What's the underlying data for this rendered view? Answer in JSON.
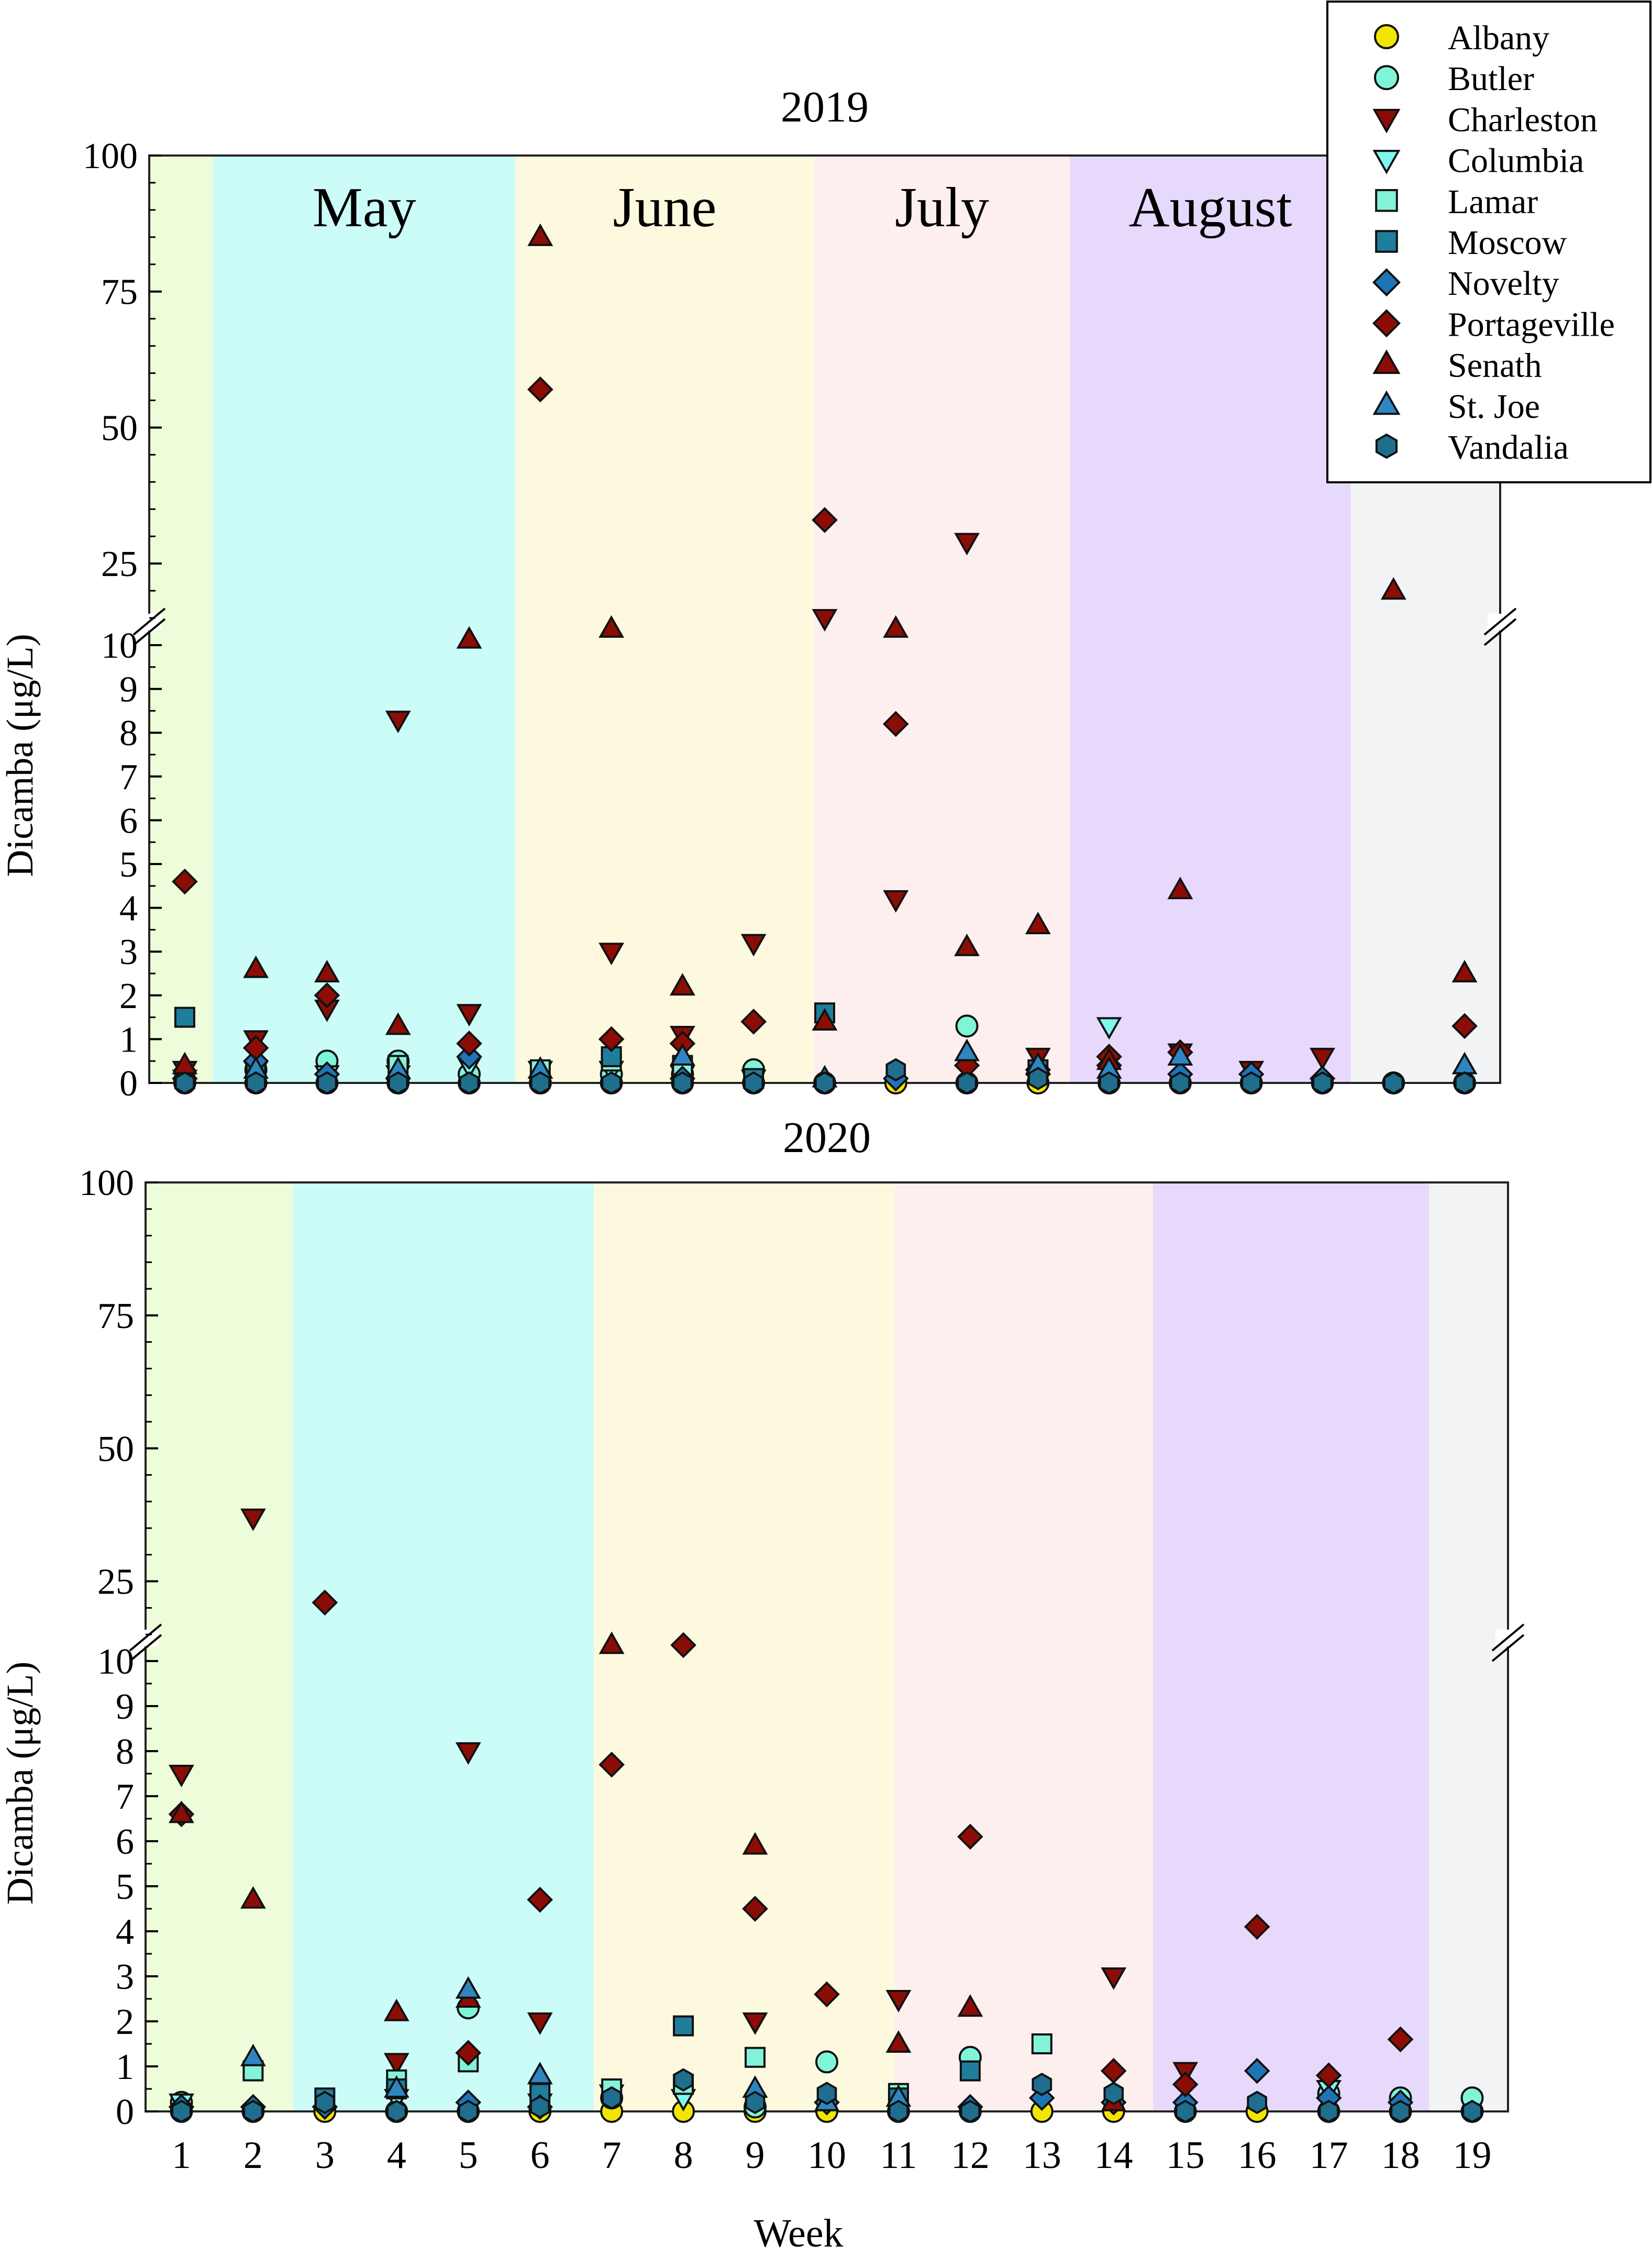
{
  "legend": {
    "entries": [
      {
        "label": "Albany",
        "marker": "circle",
        "fill": "#F2E600"
      },
      {
        "label": "Butler",
        "marker": "circle",
        "fill": "#7FF5D8"
      },
      {
        "label": "Charleston",
        "marker": "triangle-down",
        "fill": "#8B0D06"
      },
      {
        "label": "Columbia",
        "marker": "triangle-down",
        "fill": "#7FF7EE"
      },
      {
        "label": "Lamar",
        "marker": "square",
        "fill": "#82F2D8"
      },
      {
        "label": "Moscow",
        "marker": "square",
        "fill": "#1F7E9C"
      },
      {
        "label": "Novelty",
        "marker": "diamond",
        "fill": "#1F74B5"
      },
      {
        "label": "Portageville",
        "marker": "diamond",
        "fill": "#8B0D06"
      },
      {
        "label": "Senath",
        "marker": "triangle-up",
        "fill": "#8B0D06"
      },
      {
        "label": "St. Joe",
        "marker": "triangle-up",
        "fill": "#2E86C1"
      },
      {
        "label": "Vandalia",
        "marker": "hexagon",
        "fill": "#1F6E8E"
      }
    ]
  },
  "xlabel": "Week",
  "ylabel": "Dicamba (μg/L)",
  "chart_data": [
    {
      "type": "scatter",
      "title": "2019",
      "xlabel": "Week",
      "ylabel": "Dicamba (μg/L)",
      "xlim": [
        0.5,
        19.5
      ],
      "x_ticks": [
        "1",
        "2",
        "3",
        "4",
        "5",
        "6",
        "7",
        "8",
        "9",
        "10",
        "11",
        "12",
        "13",
        "14",
        "15",
        "16",
        "17",
        "18",
        "19"
      ],
      "y_axis": "broken: 0–10 linear, 10–100 compressed",
      "y_ticks_lower": [
        "0",
        "1",
        "2",
        "3",
        "4",
        "5",
        "6",
        "7",
        "8",
        "9",
        "10"
      ],
      "y_ticks_upper": [
        "25",
        "50",
        "75",
        "100"
      ],
      "month_bands": [
        {
          "label": "",
          "from": 0.5,
          "to": 1.4,
          "color": "#EDFDD9"
        },
        {
          "label": "May",
          "from": 1.4,
          "to": 5.65,
          "color": "#CCFCF8"
        },
        {
          "label": "June",
          "from": 5.65,
          "to": 9.85,
          "color": "#FDF9DE"
        },
        {
          "label": "July",
          "from": 9.85,
          "to": 13.45,
          "color": "#FDEFEE"
        },
        {
          "label": "August",
          "from": 13.45,
          "to": 17.4,
          "color": "#E6D9FB"
        },
        {
          "label": "",
          "from": 17.4,
          "to": 19.5,
          "color": "#F2F3F5"
        }
      ],
      "series": [
        {
          "name": "Albany",
          "x": [
            1,
            2,
            3,
            4,
            5,
            6,
            7,
            8,
            9,
            10,
            11,
            12,
            13,
            14,
            15,
            16,
            17,
            18,
            19
          ],
          "y": [
            0,
            0,
            0,
            0,
            0,
            0,
            0,
            0,
            0,
            0,
            0,
            0,
            0,
            0,
            0,
            0,
            0,
            0,
            0
          ]
        },
        {
          "name": "Butler",
          "x": [
            1,
            2,
            3,
            4,
            5,
            7,
            8,
            9,
            12
          ],
          "y": [
            0.05,
            0.3,
            0.5,
            0.5,
            0.2,
            0.2,
            0.2,
            0.3,
            1.3
          ]
        },
        {
          "name": "Charleston",
          "x": [
            1,
            2,
            3,
            4,
            5,
            7,
            8,
            9,
            10,
            11,
            12,
            13,
            15,
            16,
            17
          ],
          "y": [
            0.3,
            1.0,
            1.7,
            8.3,
            1.6,
            3.0,
            1.1,
            3.2,
            15,
            4.2,
            29,
            0.6,
            0.7,
            0.3,
            0.6
          ]
        },
        {
          "name": "Columbia",
          "x": [
            1,
            2,
            3,
            4,
            5,
            6,
            7,
            8,
            9,
            14
          ],
          "y": [
            0.1,
            0.3,
            0.2,
            0.2,
            0.4,
            0.3,
            0.3,
            0.2,
            0.1,
            1.3
          ]
        },
        {
          "name": "Lamar",
          "x": [
            1,
            4,
            6,
            7,
            8
          ],
          "y": [
            0.1,
            0.4,
            0.3,
            0.5,
            0.4
          ]
        },
        {
          "name": "Moscow",
          "x": [
            1,
            2,
            7,
            9,
            10,
            13
          ],
          "y": [
            1.5,
            0.2,
            0.6,
            0.1,
            1.6,
            0.3
          ]
        },
        {
          "name": "Novelty",
          "x": [
            1,
            2,
            3,
            4,
            5,
            8,
            11,
            13,
            14,
            15,
            16,
            17
          ],
          "y": [
            0.1,
            0.5,
            0.2,
            0.1,
            0.6,
            0.1,
            0.1,
            0.2,
            0.4,
            0.2,
            0.2,
            0.1
          ]
        },
        {
          "name": "Portageville",
          "x": [
            1,
            2,
            3,
            5,
            6,
            7,
            8,
            9,
            10,
            11,
            12,
            13,
            14,
            15,
            19
          ],
          "y": [
            4.6,
            0.8,
            2.0,
            0.9,
            57,
            1.0,
            0.9,
            1.4,
            33,
            8.2,
            0.4,
            0.3,
            0.6,
            0.7,
            1.3
          ]
        },
        {
          "name": "Senath",
          "x": [
            1,
            2,
            3,
            4,
            5,
            6,
            7,
            8,
            10,
            11,
            12,
            13,
            14,
            15,
            18,
            19
          ],
          "y": [
            0.4,
            2.6,
            2.5,
            1.3,
            11,
            85,
            13,
            2.2,
            1.4,
            13,
            3.1,
            3.6,
            0.5,
            4.4,
            20,
            2.5
          ]
        },
        {
          "name": "St. Joe",
          "x": [
            2,
            4,
            6,
            8,
            10,
            12,
            13,
            14,
            15,
            19
          ],
          "y": [
            0.3,
            0.3,
            0.3,
            0.6,
            0.1,
            0.7,
            0.4,
            0.3,
            0.6,
            0.4
          ]
        },
        {
          "name": "Vandalia",
          "x": [
            1,
            2,
            3,
            4,
            5,
            6,
            7,
            8,
            9,
            10,
            11,
            12,
            13,
            14,
            15,
            16,
            17,
            18,
            19
          ],
          "y": [
            0,
            0,
            0,
            0,
            0,
            0,
            0,
            0,
            0,
            0,
            0.3,
            0,
            0.1,
            0,
            0,
            0,
            0,
            0,
            0
          ]
        }
      ]
    },
    {
      "type": "scatter",
      "title": "2020",
      "xlabel": "Week",
      "ylabel": "Dicamba (μg/L)",
      "xlim": [
        0.5,
        19.5
      ],
      "x_ticks": [
        "1",
        "2",
        "3",
        "4",
        "5",
        "6",
        "7",
        "8",
        "9",
        "10",
        "11",
        "12",
        "13",
        "14",
        "15",
        "16",
        "17",
        "18",
        "19"
      ],
      "y_axis": "broken: 0–10 linear, 10–100 compressed",
      "y_ticks_lower": [
        "0",
        "1",
        "2",
        "3",
        "4",
        "5",
        "6",
        "7",
        "8",
        "9",
        "10"
      ],
      "y_ticks_upper": [
        "25",
        "50",
        "75",
        "100"
      ],
      "month_bands": [
        {
          "label": "",
          "from": 0.5,
          "to": 2.55,
          "color": "#EDFDD9"
        },
        {
          "label": "",
          "from": 2.55,
          "to": 6.75,
          "color": "#CCFCF8"
        },
        {
          "label": "",
          "from": 6.75,
          "to": 10.95,
          "color": "#FDF9DE"
        },
        {
          "label": "",
          "from": 10.95,
          "to": 14.55,
          "color": "#FDEFEE"
        },
        {
          "label": "",
          "from": 14.55,
          "to": 18.4,
          "color": "#E6D9FB"
        },
        {
          "label": "",
          "from": 18.4,
          "to": 19.5,
          "color": "#F2F3F5"
        }
      ],
      "series": [
        {
          "name": "Albany",
          "x": [
            1,
            2,
            3,
            4,
            5,
            6,
            7,
            8,
            9,
            10,
            11,
            12,
            13,
            14,
            15,
            16,
            17,
            18,
            19
          ],
          "y": [
            0,
            0,
            0,
            0,
            0,
            0,
            0,
            0,
            0,
            0,
            0,
            0,
            0,
            0,
            0,
            0,
            0,
            0,
            0
          ]
        },
        {
          "name": "Butler",
          "x": [
            1,
            5,
            7,
            9,
            10,
            12,
            17,
            18,
            19
          ],
          "y": [
            0.2,
            2.3,
            0.3,
            0.1,
            1.1,
            1.2,
            0.4,
            0.3,
            0.3
          ]
        },
        {
          "name": "Charleston",
          "x": [
            1,
            2,
            4,
            5,
            6,
            9,
            11,
            14,
            15
          ],
          "y": [
            7.5,
            37,
            1.1,
            8.0,
            2.0,
            2.0,
            2.5,
            3.0,
            0.9
          ]
        },
        {
          "name": "Columbia",
          "x": [
            1,
            4,
            6,
            7,
            8,
            17
          ],
          "y": [
            0.2,
            0.3,
            0.2,
            0.4,
            0.3,
            0.5
          ]
        },
        {
          "name": "Lamar",
          "x": [
            2,
            4,
            5,
            7,
            8,
            9,
            11,
            13
          ],
          "y": [
            0.9,
            0.7,
            1.1,
            0.5,
            0.6,
            1.2,
            0.4,
            1.5
          ]
        },
        {
          "name": "Moscow",
          "x": [
            3,
            4,
            6,
            8,
            11,
            12
          ],
          "y": [
            0.3,
            0.5,
            0.4,
            1.9,
            0.3,
            0.9
          ]
        },
        {
          "name": "Novelty",
          "x": [
            1,
            2,
            3,
            5,
            6,
            10,
            12,
            13,
            14,
            15,
            16,
            17,
            18
          ],
          "y": [
            0.1,
            0.1,
            0.1,
            0.2,
            0.1,
            0.2,
            0.1,
            0.3,
            0.2,
            0.2,
            0.9,
            0.3,
            0.2
          ]
        },
        {
          "name": "Portageville",
          "x": [
            1,
            3,
            5,
            6,
            7,
            8,
            9,
            10,
            12,
            14,
            15,
            16,
            17,
            18
          ],
          "y": [
            6.6,
            21,
            1.3,
            4.7,
            7.7,
            13,
            4.5,
            2.6,
            6.1,
            0.9,
            0.6,
            4.1,
            0.8,
            1.6
          ]
        },
        {
          "name": "Senath",
          "x": [
            1,
            2,
            4,
            5,
            7,
            9,
            11,
            12,
            14
          ],
          "y": [
            6.6,
            4.7,
            2.2,
            2.5,
            13,
            5.9,
            1.5,
            2.3,
            0.2
          ]
        },
        {
          "name": "St. Joe",
          "x": [
            2,
            4,
            5,
            6,
            9,
            10,
            11
          ],
          "y": [
            1.2,
            0.5,
            2.7,
            0.8,
            0.5,
            0.2,
            0.3
          ]
        },
        {
          "name": "Vandalia",
          "x": [
            1,
            2,
            3,
            4,
            5,
            6,
            7,
            8,
            9,
            10,
            11,
            12,
            13,
            14,
            15,
            16,
            17,
            18,
            19
          ],
          "y": [
            0,
            0,
            0.2,
            0,
            0,
            0.1,
            0.3,
            0.7,
            0.2,
            0.4,
            0,
            0,
            0.6,
            0.4,
            0,
            0.2,
            0,
            0,
            0
          ]
        }
      ]
    }
  ]
}
